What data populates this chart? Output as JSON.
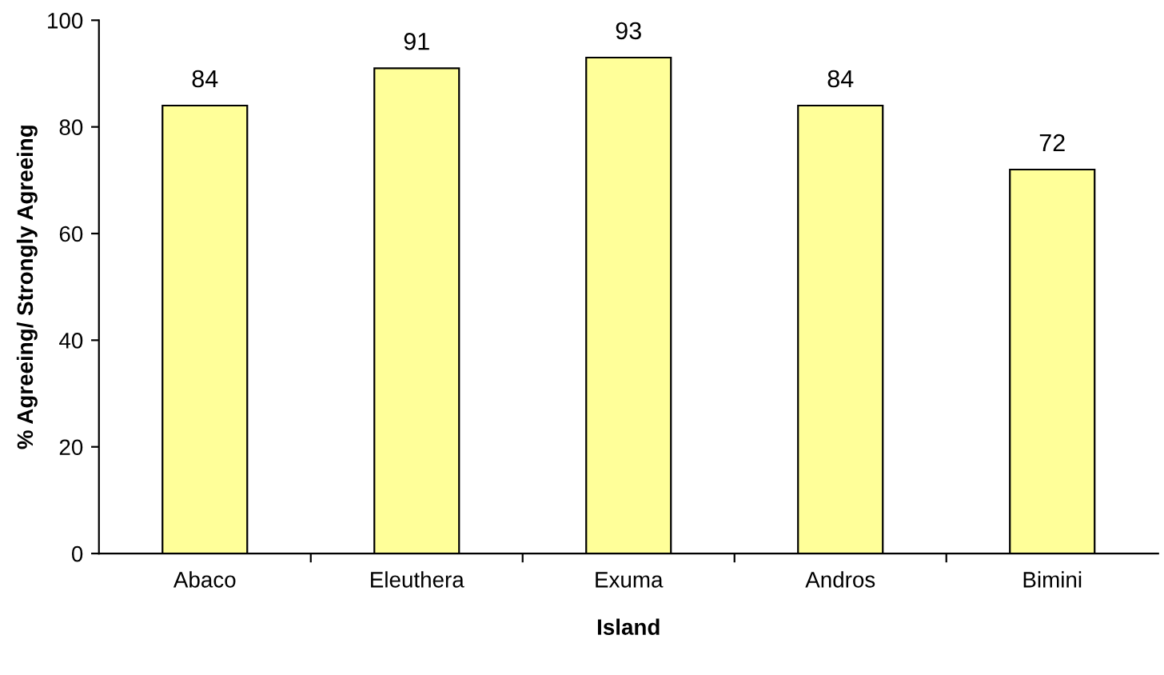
{
  "chart_data": {
    "type": "bar",
    "xlabel": "Island",
    "ylabel": "% Agreeing/ Strongly Agreeing",
    "categories": [
      "Abaco",
      "Eleuthera",
      "Exuma",
      "Andros",
      "Bimini"
    ],
    "values": [
      84,
      91,
      93,
      84,
      72
    ],
    "color": "#ffff99",
    "ylim": [
      0,
      100
    ],
    "yticks": [
      0,
      20,
      40,
      60,
      80,
      100
    ],
    "grid": false,
    "legend": false,
    "data_labels": true
  }
}
